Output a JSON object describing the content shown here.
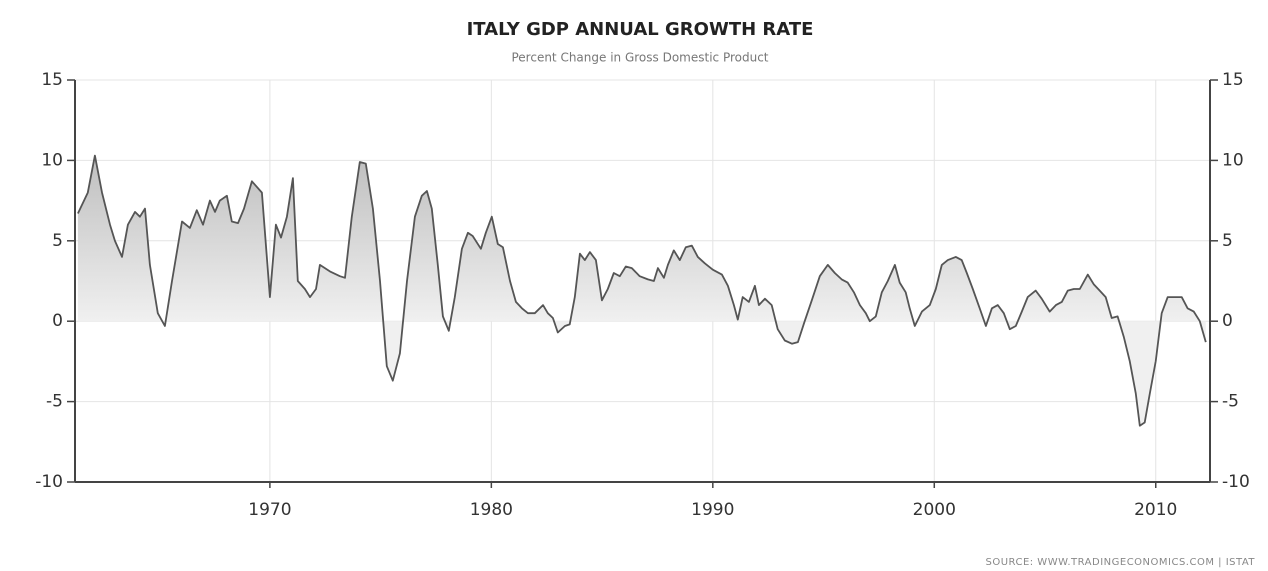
{
  "chart_data": {
    "type": "area",
    "title": "ITALY GDP ANNUAL GROWTH RATE",
    "subtitle": "Percent Change in Gross Domestic Product",
    "source": "SOURCE:  WWW.TRADINGECONOMICS.COM  |  ISTAT",
    "x": [
      1961.33,
      1961.78,
      1962.1,
      1962.42,
      1962.78,
      1963.0,
      1963.32,
      1963.59,
      1963.91,
      1964.13,
      1964.36,
      1964.58,
      1964.94,
      1965.26,
      1965.58,
      1966.03,
      1966.39,
      1966.7,
      1966.98,
      1967.29,
      1967.52,
      1967.74,
      1968.06,
      1968.28,
      1968.56,
      1968.83,
      1969.19,
      1969.64,
      1970.0,
      1970.27,
      1970.5,
      1970.77,
      1971.04,
      1971.26,
      1971.58,
      1971.81,
      1972.08,
      1972.26,
      1972.71,
      1973.16,
      1973.39,
      1973.7,
      1974.06,
      1974.33,
      1974.65,
      1974.97,
      1975.28,
      1975.55,
      1975.87,
      1976.19,
      1976.55,
      1976.86,
      1977.09,
      1977.31,
      1977.58,
      1977.81,
      1978.08,
      1978.35,
      1978.67,
      1978.94,
      1979.16,
      1979.53,
      1979.75,
      1980.02,
      1980.29,
      1980.52,
      1980.84,
      1981.11,
      1981.38,
      1981.65,
      1981.96,
      1982.33,
      1982.55,
      1982.78,
      1983.0,
      1983.32,
      1983.54,
      1983.77,
      1984.0,
      1984.22,
      1984.45,
      1984.72,
      1984.99,
      1985.26,
      1985.53,
      1985.8,
      1986.07,
      1986.34,
      1986.7,
      1987.07,
      1987.34,
      1987.52,
      1987.79,
      1987.97,
      1988.24,
      1988.51,
      1988.78,
      1989.05,
      1989.32,
      1989.64,
      1990.0,
      1990.41,
      1990.68,
      1990.95,
      1991.13,
      1991.35,
      1991.63,
      1991.9,
      1992.08,
      1992.35,
      1992.66,
      1992.93,
      1993.25,
      1993.57,
      1993.84,
      1994.15,
      1994.47,
      1994.83,
      1995.19,
      1995.51,
      1995.82,
      1996.09,
      1996.37,
      1996.64,
      1996.91,
      1997.09,
      1997.36,
      1997.63,
      1997.9,
      1998.22,
      1998.44,
      1998.71,
      1998.89,
      1999.12,
      1999.44,
      1999.8,
      2000.07,
      2000.34,
      2000.61,
      2000.97,
      2001.24,
      2001.47,
      2001.74,
      2002.05,
      2002.33,
      2002.6,
      2002.87,
      2003.14,
      2003.41,
      2003.68,
      2003.95,
      2004.22,
      2004.58,
      2004.85,
      2005.21,
      2005.49,
      2005.76,
      2006.03,
      2006.3,
      2006.57,
      2006.93,
      2007.2,
      2007.47,
      2007.74,
      2008.01,
      2008.28,
      2008.56,
      2008.83,
      2009.1,
      2009.28,
      2009.5,
      2009.73,
      2010.0,
      2010.27,
      2010.54,
      2010.9,
      2011.17,
      2011.44,
      2011.72,
      2011.99,
      2012.26
    ],
    "values": [
      6.7,
      8.0,
      10.3,
      8.0,
      6.0,
      5.0,
      4.0,
      6.0,
      6.8,
      6.5,
      7.0,
      3.5,
      0.5,
      -0.3,
      2.5,
      6.2,
      5.8,
      6.9,
      6.0,
      7.5,
      6.8,
      7.5,
      7.8,
      6.2,
      6.1,
      7.0,
      8.7,
      8.0,
      1.5,
      6.0,
      5.2,
      6.5,
      8.9,
      2.5,
      2.0,
      1.5,
      2.0,
      3.5,
      3.1,
      2.8,
      2.7,
      6.5,
      9.9,
      9.8,
      7.0,
      2.5,
      -2.8,
      -3.7,
      -2.0,
      2.5,
      6.5,
      7.8,
      8.1,
      7.0,
      3.5,
      0.3,
      -0.6,
      1.5,
      4.5,
      5.5,
      5.3,
      4.5,
      5.5,
      6.5,
      4.8,
      4.6,
      2.5,
      1.2,
      0.8,
      0.5,
      0.5,
      1.0,
      0.5,
      0.2,
      -0.7,
      -0.3,
      -0.2,
      1.5,
      4.2,
      3.8,
      4.3,
      3.8,
      1.3,
      2.0,
      3.0,
      2.8,
      3.4,
      3.3,
      2.8,
      2.6,
      2.5,
      3.3,
      2.7,
      3.5,
      4.4,
      3.8,
      4.6,
      4.7,
      4.0,
      3.6,
      3.2,
      2.9,
      2.2,
      1.0,
      0.1,
      1.5,
      1.2,
      2.2,
      1.0,
      1.4,
      1.0,
      -0.5,
      -1.2,
      -1.4,
      -1.3,
      0.0,
      1.3,
      2.8,
      3.5,
      3.0,
      2.6,
      2.4,
      1.8,
      1.0,
      0.5,
      0.0,
      0.3,
      1.8,
      2.5,
      3.5,
      2.4,
      1.8,
      0.8,
      -0.3,
      0.6,
      1.0,
      2.0,
      3.5,
      3.8,
      4.0,
      3.8,
      3.0,
      2.0,
      0.8,
      -0.3,
      0.8,
      1.0,
      0.5,
      -0.5,
      -0.3,
      0.6,
      1.5,
      1.9,
      1.4,
      0.6,
      1.0,
      1.2,
      1.9,
      2.0,
      2.0,
      2.9,
      2.3,
      1.9,
      1.5,
      0.2,
      0.3,
      -1.0,
      -2.5,
      -4.5,
      -6.5,
      -6.3,
      -4.5,
      -2.5,
      0.5,
      1.5,
      1.5,
      1.5,
      0.8,
      0.6,
      0.0,
      -1.3
    ],
    "color": "#555555",
    "fill_color": "#a8a8a8",
    "xlim": [
      1961.2,
      2012.45
    ],
    "ylim": [
      -10,
      15
    ],
    "xticks": [
      1970,
      1980,
      1990,
      2000,
      2010
    ],
    "yticks": [
      -10,
      -5,
      0,
      5,
      10,
      15
    ],
    "grid": true
  }
}
